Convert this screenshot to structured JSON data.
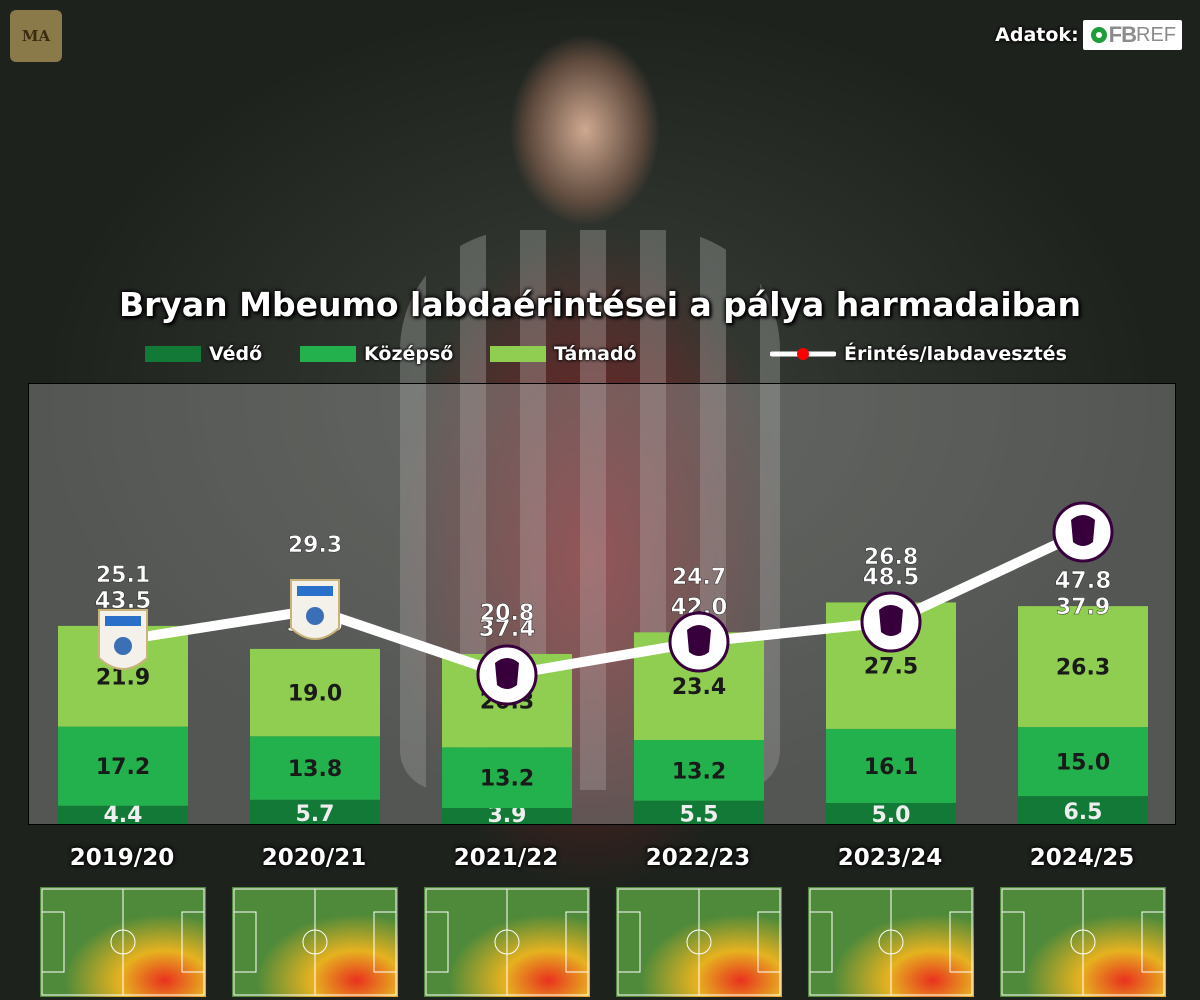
{
  "header": {
    "brand_text": "MA",
    "credit_label": "Adatok:",
    "credit_logo_fb": "FB",
    "credit_logo_ref": "REF"
  },
  "colors": {
    "defensive": "#127a36",
    "middle": "#22b14c",
    "attacking": "#8fce50",
    "line": "#ffffff",
    "marker": "#ff0000",
    "plot_bg": "#9a9a9a"
  },
  "chart_data": {
    "type": "bar",
    "stacked": true,
    "title": "Bryan Mbeumo labdaérintései a pálya harmadaiban",
    "legend": [
      "Védő",
      "Középső",
      "Támadó",
      "Érintés/labdavesztés"
    ],
    "legend_position": "top",
    "categories": [
      "2019/20",
      "2020/21",
      "2021/22",
      "2022/23",
      "2023/24",
      "2024/25"
    ],
    "series": [
      {
        "name": "Védő",
        "values": [
          4.4,
          5.7,
          3.9,
          5.5,
          5.0,
          6.5
        ]
      },
      {
        "name": "Középső",
        "values": [
          17.2,
          13.8,
          13.2,
          13.2,
          16.1,
          15.0
        ]
      },
      {
        "name": "Támadó",
        "values": [
          21.9,
          19.0,
          20.3,
          23.4,
          27.5,
          26.3
        ]
      }
    ],
    "totals": [
      43.5,
      38.5,
      37.4,
      42.0,
      48.5,
      47.8
    ],
    "line_series": {
      "name": "Érintés/labdavesztés",
      "values": [
        25.1,
        29.3,
        20.8,
        24.7,
        26.8,
        37.9
      ],
      "markers": [
        "efl-championship-icon",
        "efl-championship-icon",
        "premier-league-icon",
        "premier-league-icon",
        "premier-league-icon",
        "premier-league-icon"
      ]
    },
    "grid": false
  }
}
